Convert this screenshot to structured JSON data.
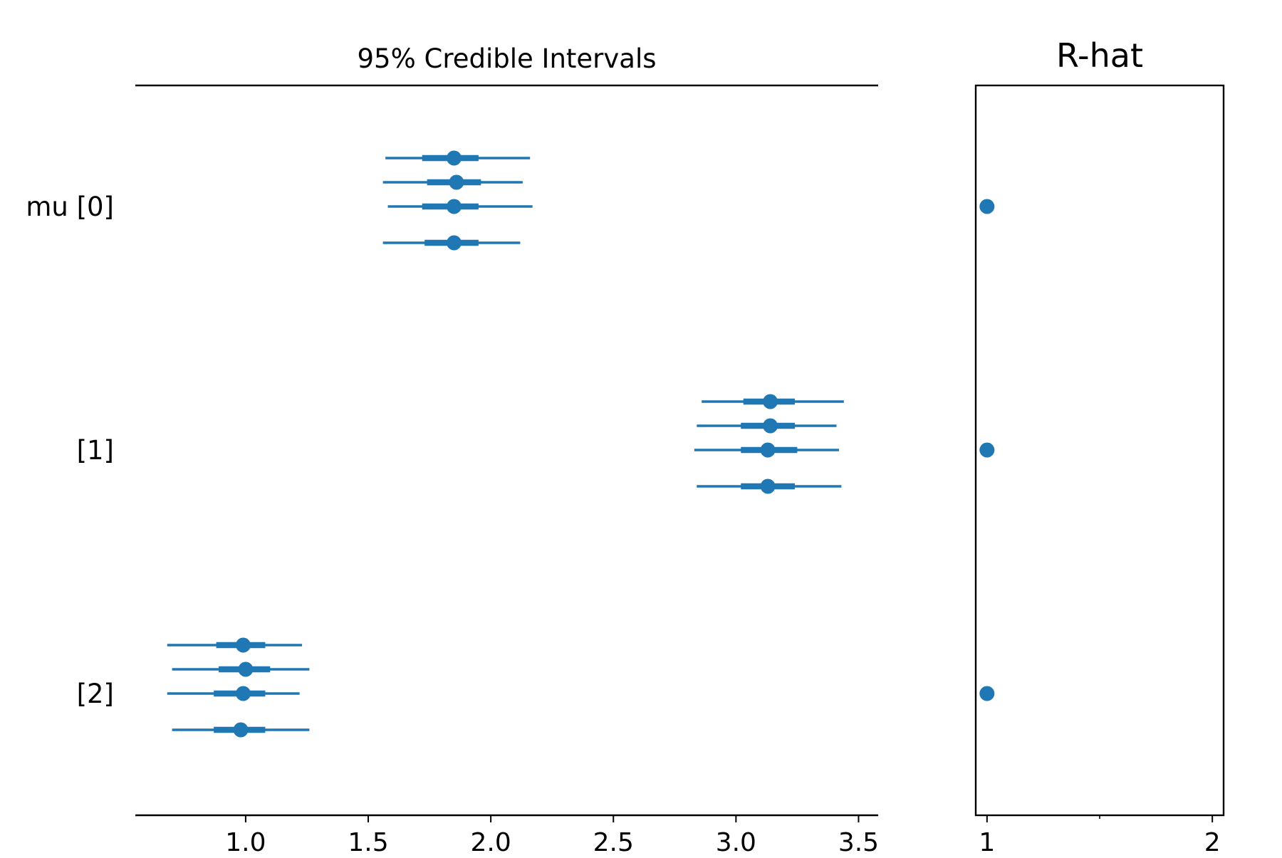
{
  "chart_data": [
    {
      "type": "forest",
      "title": "95% Credible Intervals",
      "xlabel": "",
      "ylabel": "",
      "xlim": [
        0.55,
        3.58
      ],
      "x_ticks": [
        1.0,
        1.5,
        2.0,
        2.5,
        3.0,
        3.5
      ],
      "x_tick_labels": [
        "1.0",
        "1.5",
        "2.0",
        "2.5",
        "3.0",
        "3.5"
      ],
      "y_labels": [
        "mu [0]",
        "[1]",
        "[2]"
      ],
      "grid": false,
      "color": "#1f77b4",
      "parameters": [
        {
          "label": "mu [0]",
          "chains": [
            {
              "mean": 1.85,
              "hdi_50": [
                1.72,
                1.95
              ],
              "hdi_95": [
                1.57,
                2.16
              ]
            },
            {
              "mean": 1.86,
              "hdi_50": [
                1.74,
                1.96
              ],
              "hdi_95": [
                1.56,
                2.13
              ]
            },
            {
              "mean": 1.85,
              "hdi_50": [
                1.72,
                1.95
              ],
              "hdi_95": [
                1.58,
                2.17
              ]
            },
            {
              "mean": 1.85,
              "hdi_50": [
                1.73,
                1.95
              ],
              "hdi_95": [
                1.56,
                2.12
              ]
            }
          ]
        },
        {
          "label": "[1]",
          "chains": [
            {
              "mean": 3.14,
              "hdi_50": [
                3.03,
                3.24
              ],
              "hdi_95": [
                2.86,
                3.44
              ]
            },
            {
              "mean": 3.14,
              "hdi_50": [
                3.02,
                3.24
              ],
              "hdi_95": [
                2.84,
                3.41
              ]
            },
            {
              "mean": 3.13,
              "hdi_50": [
                3.02,
                3.25
              ],
              "hdi_95": [
                2.83,
                3.42
              ]
            },
            {
              "mean": 3.13,
              "hdi_50": [
                3.02,
                3.24
              ],
              "hdi_95": [
                2.84,
                3.43
              ]
            }
          ]
        },
        {
          "label": "[2]",
          "chains": [
            {
              "mean": 0.99,
              "hdi_50": [
                0.88,
                1.08
              ],
              "hdi_95": [
                0.68,
                1.23
              ]
            },
            {
              "mean": 1.0,
              "hdi_50": [
                0.89,
                1.1
              ],
              "hdi_95": [
                0.7,
                1.26
              ]
            },
            {
              "mean": 0.99,
              "hdi_50": [
                0.87,
                1.08
              ],
              "hdi_95": [
                0.68,
                1.22
              ]
            },
            {
              "mean": 0.98,
              "hdi_50": [
                0.87,
                1.08
              ],
              "hdi_95": [
                0.7,
                1.26
              ]
            }
          ]
        }
      ]
    },
    {
      "type": "scatter",
      "title": "R-hat",
      "xlabel": "",
      "ylabel": "",
      "xlim": [
        0.95,
        2.05
      ],
      "x_ticks": [
        1,
        2
      ],
      "x_tick_labels": [
        "1",
        "2"
      ],
      "grid": false,
      "color": "#1f77b4",
      "points": [
        {
          "label": "mu [0]",
          "value": 1.0
        },
        {
          "label": "[1]",
          "value": 1.0
        },
        {
          "label": "[2]",
          "value": 1.0
        }
      ]
    }
  ]
}
